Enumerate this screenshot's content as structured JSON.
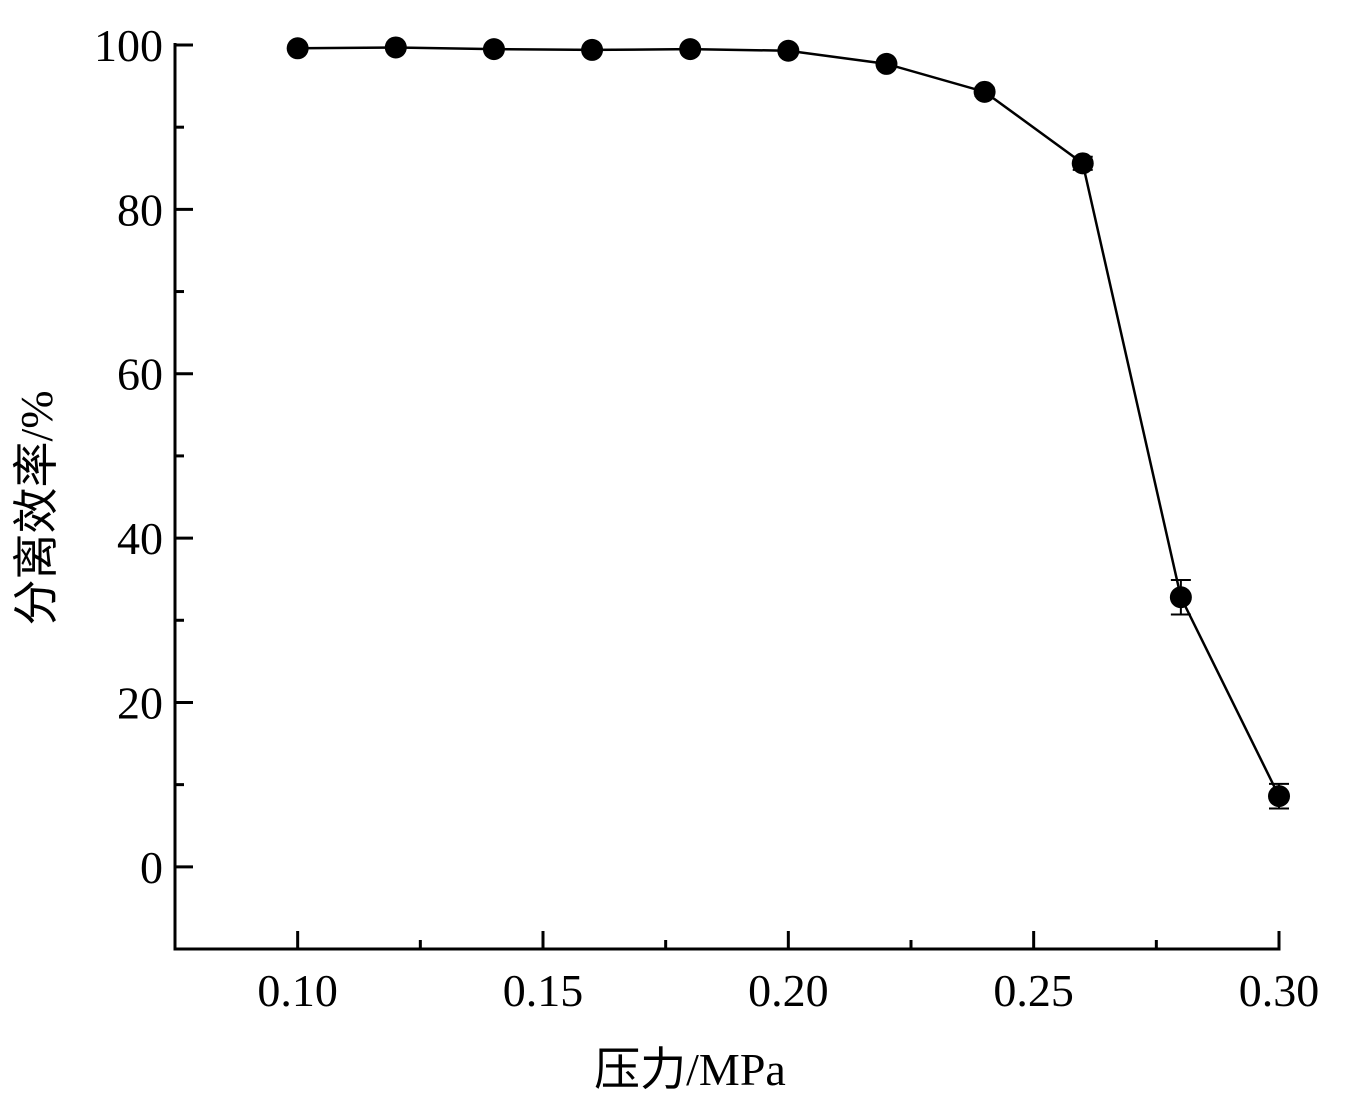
{
  "chart_data": {
    "type": "line",
    "x_label": "压力/MPa",
    "y_label": "分离效率/%",
    "x": [
      0.1,
      0.12,
      0.14,
      0.16,
      0.18,
      0.2,
      0.22,
      0.24,
      0.26,
      0.28,
      0.3
    ],
    "series": [
      {
        "color": "#000000",
        "values": [
          99.6,
          99.7,
          99.5,
          99.4,
          99.5,
          99.3,
          97.7,
          94.3,
          85.6,
          32.8,
          8.6
        ],
        "errors": [
          0.3,
          0.3,
          0.3,
          0.3,
          0.3,
          0.3,
          0.4,
          0.5,
          0.8,
          2.1,
          1.5
        ]
      }
    ],
    "xlim": [
      0.075,
      0.3
    ],
    "ylim": [
      -10,
      100
    ],
    "xticks": [
      {
        "value": 0.1,
        "label": "0.10"
      },
      {
        "value": 0.15,
        "label": "0.15"
      },
      {
        "value": 0.2,
        "label": "0.20"
      },
      {
        "value": 0.25,
        "label": "0.25"
      },
      {
        "value": 0.3,
        "label": "0.30"
      }
    ],
    "xminorticks": [
      0.125,
      0.175,
      0.225,
      0.275
    ],
    "yticks": [
      0,
      20,
      40,
      60,
      80,
      100
    ],
    "yminorticks": [
      10,
      30,
      50,
      70,
      90
    ],
    "grid": false
  }
}
